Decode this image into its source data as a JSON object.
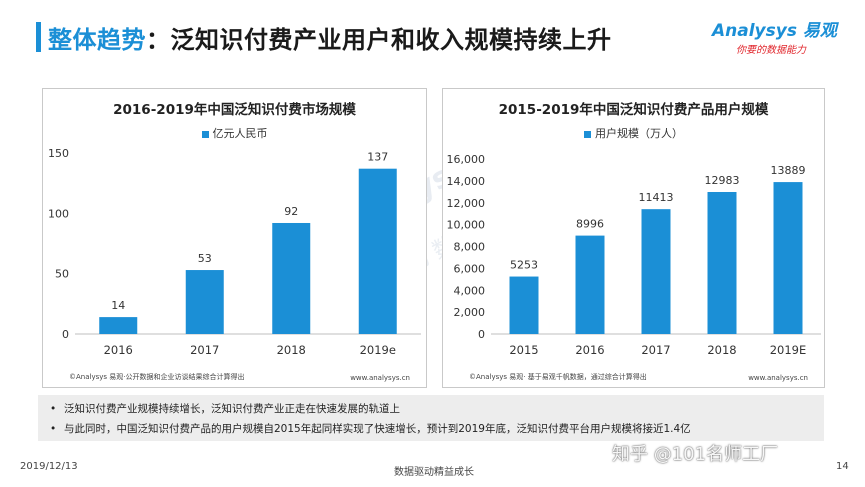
{
  "header": {
    "title_accent": "整体趋势",
    "title_sep": "：",
    "title_rest": "泛知识付费产业用户和收入规模持续上升",
    "logo_brand": "Analysys 易观",
    "logo_slogan": "你要的数据能力"
  },
  "colors": {
    "accent": "#1b8fd6",
    "bar": "#1b8fd6",
    "notes_bg": "#ededed",
    "slogan": "#e1262c"
  },
  "chart_data": [
    {
      "type": "bar",
      "title": "2016-2019年中国泛知识付费市场规模",
      "legend": "亿元人民币",
      "categories": [
        "2016",
        "2017",
        "2018",
        "2019e"
      ],
      "values": [
        14,
        53,
        92,
        137
      ],
      "value_labels": [
        "14",
        "53",
        "92",
        "137"
      ],
      "ylim": [
        0,
        150
      ],
      "yticks": [
        0,
        50,
        100,
        150
      ],
      "ytick_labels": [
        "0",
        "50",
        "100",
        "150"
      ],
      "source": "©Analysys 易观·公开数据和企业访谈结果综合计算得出",
      "url": "www.analysys.cn"
    },
    {
      "type": "bar",
      "title": "2015-2019年中国泛知识付费产品用户规模",
      "legend": "用户规模（万人）",
      "categories": [
        "2015",
        "2016",
        "2017",
        "2018",
        "2019E"
      ],
      "values": [
        5253,
        8996,
        11413,
        12983,
        13889
      ],
      "value_labels": [
        "5253",
        "8996",
        "11413",
        "12983",
        "13889"
      ],
      "ylim": [
        0,
        16000
      ],
      "yticks": [
        0,
        2000,
        4000,
        6000,
        8000,
        10000,
        12000,
        14000,
        16000
      ],
      "ytick_labels": [
        "0",
        "2,000",
        "4,000",
        "6,000",
        "8,000",
        "10,000",
        "12,000",
        "14,000",
        "16,000"
      ],
      "source": "©Analysys 易观· 基于易观千帆数据，通过综合计算得出",
      "url": "www.analysys.cn"
    }
  ],
  "watermark": {
    "line1": "Analysys 易观",
    "line2": "你 要 的 数 据 能 力"
  },
  "notes": [
    {
      "bullet": "•",
      "text": "泛知识付费产业规模持续增长，泛知识付费产业正走在快速发展的轨道上"
    },
    {
      "bullet": "•",
      "text": "与此同时，中国泛知识付费产品的用户规模自2015年起同样实现了快速增长，预计到2019年底，泛知识付费平台用户规模将接近1.4亿"
    }
  ],
  "footer": {
    "date": "2019/12/13",
    "center": "数据驱动精益成长",
    "page": "14"
  },
  "overlay": {
    "zhihu": "知乎 @101名师工厂"
  }
}
